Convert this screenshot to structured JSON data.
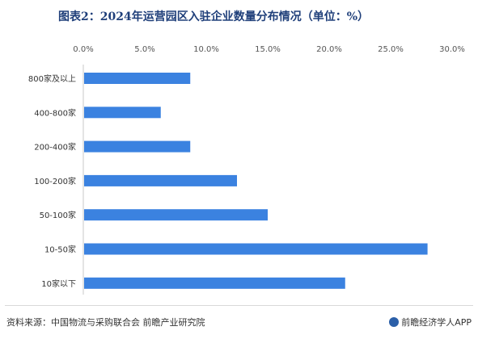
{
  "header": {
    "title": "图表2：2024年运营园区入驻企业数量分布情况（单位：%）"
  },
  "chart_data": {
    "type": "bar",
    "orientation": "horizontal",
    "title": "图表2：2024年运营园区入驻企业数量分布情况（单位：%）",
    "categories": [
      "800家及以上",
      "400-800家",
      "200-400家",
      "100-200家",
      "50-100家",
      "10-50家",
      "10家以下"
    ],
    "values": [
      8.7,
      6.3,
      8.7,
      12.5,
      15.0,
      28.0,
      21.3
    ],
    "xticks": [
      "0.0%",
      "5.0%",
      "10.0%",
      "15.0%",
      "20.0%",
      "25.0%",
      "30.0%"
    ],
    "xlim": [
      0,
      30
    ],
    "unit": "%",
    "bar_color": "#3b82e0",
    "grid": false,
    "legend": "none"
  },
  "footer": {
    "source": "资料来源：中国物流与采购联合会  前瞻产业研究院",
    "brand": "前瞻经济学人APP"
  }
}
